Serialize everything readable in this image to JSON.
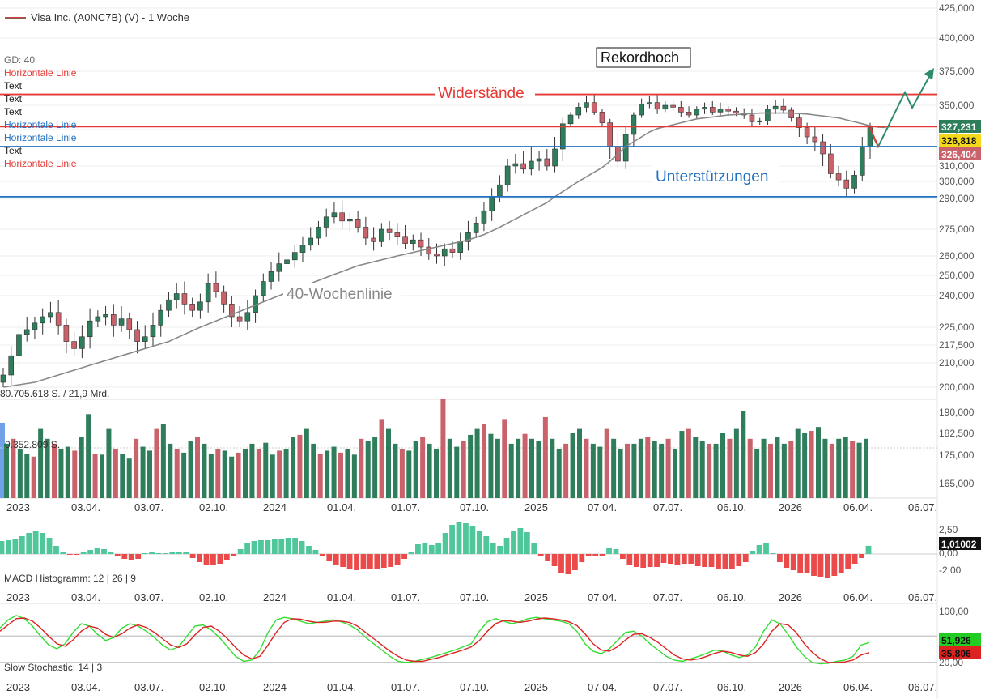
{
  "header": {
    "title": "Visa Inc. (A0NC7B) (V) - 1 Woche"
  },
  "indicator_list": [
    {
      "label": "GD: 40",
      "color": "#666666"
    },
    {
      "label": "Horizontale Linie",
      "color": "#e53935"
    },
    {
      "label": "Text",
      "color": "#222222"
    },
    {
      "label": "Text",
      "color": "#222222"
    },
    {
      "label": "Text",
      "color": "#222222"
    },
    {
      "label": "Horizontale Linie",
      "color": "#1e6fc0"
    },
    {
      "label": "Horizontale Linie",
      "color": "#1e6fc0"
    },
    {
      "label": "Text",
      "color": "#222222"
    },
    {
      "label": "Horizontale Linie",
      "color": "#e53935"
    }
  ],
  "annotations": {
    "rekordhoch": "Rekordhoch",
    "widerstaende": "Widerstände",
    "unterstuetzungen": "Unterstützungen",
    "wochenlinie": "40-Wochenlinie"
  },
  "volume_labels": {
    "total": "80.705.618 S. / 21,9 Mrd.",
    "last": "0.352.809 S."
  },
  "x_tick_labels": [
    "2023",
    "03.04.",
    "03.07.",
    "02.10.",
    "2024",
    "01.04.",
    "01.07.",
    "07.10.",
    "2025",
    "07.04.",
    "07.07.",
    "06.10.",
    "2026",
    "06.04.",
    "06.07."
  ],
  "price_axis_labels": [
    "425,000",
    "400,000",
    "375,000",
    "350,000",
    "325,000",
    "310,000",
    "300,000",
    "290,000",
    "275,000",
    "260,000",
    "250,000",
    "240,000",
    "225,000",
    "217,500",
    "210,000",
    "200,000",
    "190,000",
    "182,500",
    "175,000",
    "165,000"
  ],
  "badges": {
    "upper": "327,231",
    "mid": "326,818",
    "lower": "326,404"
  },
  "macd": {
    "label": "MACD Histogramm: 12 | 26 | 9",
    "axis": [
      "2,50",
      "0,00",
      "-2,00"
    ],
    "value": "1,01002"
  },
  "stochastic": {
    "label": "Slow Stochastic: 14 | 3",
    "axis": [
      "100,00",
      "20,00"
    ],
    "k_value": "51,926",
    "d_value": "35,806"
  },
  "colors": {
    "up": "#2e7d5b",
    "down": "#c9626a",
    "resistance": "#e53935",
    "support": "#1e6fc0",
    "ma": "#888888",
    "macd_pos": "#4fc79a",
    "macd_neg": "#ea4a4a",
    "stoch_k": "#33dd33",
    "stoch_d": "#dd2222",
    "badge_upper": "#2e7d5b",
    "badge_mid": "#f4d81c",
    "badge_lower": "#c9626a",
    "arrow": "#2e8b6e"
  },
  "chart_data": {
    "type": "candlestick",
    "title": "Visa Inc. (A0NC7B) (V) - 1 Woche",
    "price_range": [
      200,
      425
    ],
    "resistance_levels": [
      358,
      328
    ],
    "support_levels": [
      318,
      291
    ],
    "record_high": 373,
    "last_close": 326.818,
    "moving_average_40w_last": 327.231,
    "closes": [
      205,
      213,
      222,
      224,
      227,
      230,
      232,
      226,
      219,
      216,
      221,
      228,
      230,
      231,
      226,
      229,
      224,
      219,
      221,
      226,
      233,
      238,
      241,
      236,
      233,
      237,
      246,
      242,
      236,
      230,
      228,
      232,
      240,
      247,
      252,
      256,
      258,
      262,
      266,
      270,
      276,
      281,
      283,
      279,
      280,
      276,
      270,
      268,
      275,
      273,
      271,
      267,
      269,
      265,
      261,
      260,
      264,
      262,
      268,
      273,
      278,
      284,
      291,
      298,
      310,
      311,
      308,
      312,
      313,
      310,
      317,
      331,
      340,
      348,
      352,
      343,
      332,
      318,
      312,
      323,
      340,
      351,
      352,
      346,
      350,
      348,
      343,
      340,
      346,
      348,
      343,
      346,
      344,
      342,
      340,
      333,
      334,
      346,
      349,
      345,
      337,
      327,
      322,
      320,
      315,
      305,
      301,
      296,
      304,
      318,
      327
    ],
    "ma40": [
      200,
      200.5,
      201,
      201.5,
      202,
      203,
      204,
      205,
      206,
      207,
      208,
      209,
      210,
      211,
      212,
      213,
      214,
      215,
      216,
      217,
      218,
      219,
      220.5,
      222,
      223.5,
      225,
      226.5,
      228,
      229.5,
      231,
      232.5,
      234,
      235.5,
      237,
      238.5,
      240,
      241.5,
      243,
      244.5,
      246,
      247.5,
      249,
      250.5,
      252,
      253.5,
      255,
      256,
      257,
      258,
      259,
      260,
      261,
      262,
      263,
      264,
      265,
      266,
      267,
      268,
      269,
      270.5,
      272,
      274,
      276,
      278,
      280,
      282,
      284,
      286,
      288,
      291,
      294,
      297,
      300,
      303,
      306,
      309,
      312,
      315,
      318,
      320,
      322,
      324,
      326,
      328,
      330,
      332,
      334,
      336,
      337,
      338,
      339,
      340,
      340.5,
      341,
      341.5,
      342,
      342,
      342,
      342,
      342,
      341.5,
      341,
      340,
      339,
      338,
      337,
      335,
      333,
      331,
      329,
      327.5,
      327.2
    ],
    "macd_histogram": [
      1.6,
      1.7,
      1.9,
      2.2,
      2.6,
      2.8,
      2.6,
      2.0,
      1.0,
      0.2,
      -0.1,
      -0.1,
      0.2,
      0.5,
      0.7,
      0.6,
      0.3,
      -0.3,
      -0.6,
      -0.8,
      -0.6,
      0.1,
      0.2,
      0.1,
      0.1,
      0.2,
      0.3,
      0.2,
      -0.5,
      -1.0,
      -1.3,
      -1.4,
      -1.2,
      -0.8,
      -0.3,
      0.6,
      1.3,
      1.6,
      1.7,
      1.7,
      1.8,
      1.9,
      2.0,
      2.0,
      1.6,
      1.0,
      0.5,
      -0.2,
      -0.9,
      -1.3,
      -1.6,
      -1.9,
      -2.0,
      -1.9,
      -1.9,
      -1.8,
      -1.7,
      -1.6,
      -1.3,
      -0.6,
      0.2,
      1.2,
      1.3,
      1.1,
      1.4,
      2.6,
      3.6,
      4.0,
      3.8,
      3.4,
      2.9,
      2.2,
      1.3,
      1.0,
      2.0,
      2.9,
      3.2,
      2.7,
      1.4,
      -0.3,
      -0.9,
      -1.5,
      -2.3,
      -2.5,
      -2.0,
      -1.0,
      -0.2,
      -0.3,
      -0.3,
      0.8,
      0.6,
      -0.6,
      -1.3,
      -1.6,
      -1.7,
      -1.6,
      -1.6,
      -1.1,
      -1.2,
      -1.3,
      -1.2,
      -1.2,
      -1.5,
      -1.6,
      -1.6,
      -1.9,
      -1.8,
      -1.8,
      -1.5,
      -1.0,
      0.4,
      1.1,
      1.4,
      0.1,
      -1.0,
      -1.7,
      -2.0,
      -2.3,
      -2.4,
      -2.7,
      -2.8,
      -2.9,
      -2.7,
      -2.3,
      -1.9,
      -1.2,
      -0.5,
      1.01
    ],
    "stochastic_k": [
      75,
      88,
      95,
      90,
      78,
      62,
      48,
      42,
      50,
      68,
      82,
      78,
      65,
      55,
      60,
      75,
      82,
      78,
      70,
      60,
      48,
      40,
      45,
      62,
      78,
      80,
      72,
      60,
      45,
      30,
      22,
      24,
      40,
      68,
      88,
      92,
      90,
      86,
      82,
      84,
      86,
      88,
      85,
      80,
      72,
      60,
      50,
      40,
      30,
      22,
      20,
      22,
      25,
      28,
      32,
      36,
      40,
      45,
      50,
      70,
      85,
      90,
      86,
      82,
      85,
      90,
      92,
      90,
      88,
      86,
      82,
      70,
      50,
      38,
      34,
      42,
      55,
      68,
      70,
      62,
      50,
      40,
      30,
      24,
      22,
      26,
      30,
      35,
      40,
      38,
      32,
      28,
      32,
      45,
      70,
      88,
      82,
      65,
      45,
      30,
      20,
      18,
      19,
      22,
      24,
      30,
      48,
      51.9
    ],
    "stochastic_d": [
      70,
      80,
      90,
      91,
      86,
      75,
      62,
      50,
      46,
      56,
      70,
      78,
      75,
      65,
      60,
      66,
      75,
      80,
      76,
      68,
      58,
      48,
      44,
      50,
      64,
      76,
      78,
      70,
      58,
      44,
      32,
      26,
      30,
      48,
      68,
      84,
      90,
      89,
      86,
      84,
      84,
      86,
      86,
      84,
      78,
      68,
      58,
      48,
      38,
      30,
      24,
      22,
      22,
      25,
      28,
      32,
      36,
      40,
      45,
      55,
      70,
      82,
      87,
      86,
      84,
      86,
      89,
      91,
      90,
      88,
      85,
      79,
      66,
      50,
      40,
      38,
      45,
      56,
      65,
      66,
      60,
      52,
      42,
      32,
      26,
      24,
      26,
      30,
      35,
      38,
      36,
      32,
      30,
      36,
      50,
      70,
      82,
      80,
      68,
      50,
      36,
      26,
      20,
      20,
      21,
      24,
      32,
      35.8
    ],
    "volume_relative": [
      0.55,
      0.6,
      0.5,
      0.45,
      0.42,
      0.7,
      0.6,
      0.55,
      0.5,
      0.52,
      0.48,
      0.62,
      0.85,
      0.45,
      0.44,
      0.7,
      0.5,
      0.45,
      0.4,
      0.6,
      0.52,
      0.48,
      0.7,
      0.75,
      0.55,
      0.5,
      0.46,
      0.58,
      0.62,
      0.55,
      0.45,
      0.5,
      0.48,
      0.42,
      0.46,
      0.5,
      0.55,
      0.5,
      0.56,
      0.44,
      0.48,
      0.5,
      0.62,
      0.64,
      0.7,
      0.55,
      0.45,
      0.48,
      0.52,
      0.46,
      0.5,
      0.44,
      0.6,
      0.58,
      0.62,
      0.8,
      0.7,
      0.55,
      0.5,
      0.48,
      0.58,
      0.62,
      0.55,
      0.5,
      1.0,
      0.6,
      0.52,
      0.58,
      0.64,
      0.7,
      0.75,
      0.65,
      0.6,
      0.8,
      0.55,
      0.6,
      0.65,
      0.6,
      0.58,
      0.82,
      0.6,
      0.5,
      0.55,
      0.66,
      0.7,
      0.6,
      0.55,
      0.52,
      0.7,
      0.6,
      0.5,
      0.55,
      0.55,
      0.6,
      0.62,
      0.58,
      0.55,
      0.6,
      0.5,
      0.68,
      0.7,
      0.62,
      0.58,
      0.55,
      0.55,
      0.66,
      0.6,
      0.7,
      0.88,
      0.6,
      0.5,
      0.6,
      0.55,
      0.62,
      0.55,
      0.58,
      0.7,
      0.66,
      0.68,
      0.72,
      0.6,
      0.55,
      0.6,
      0.62,
      0.58,
      0.56,
      0.6
    ]
  }
}
